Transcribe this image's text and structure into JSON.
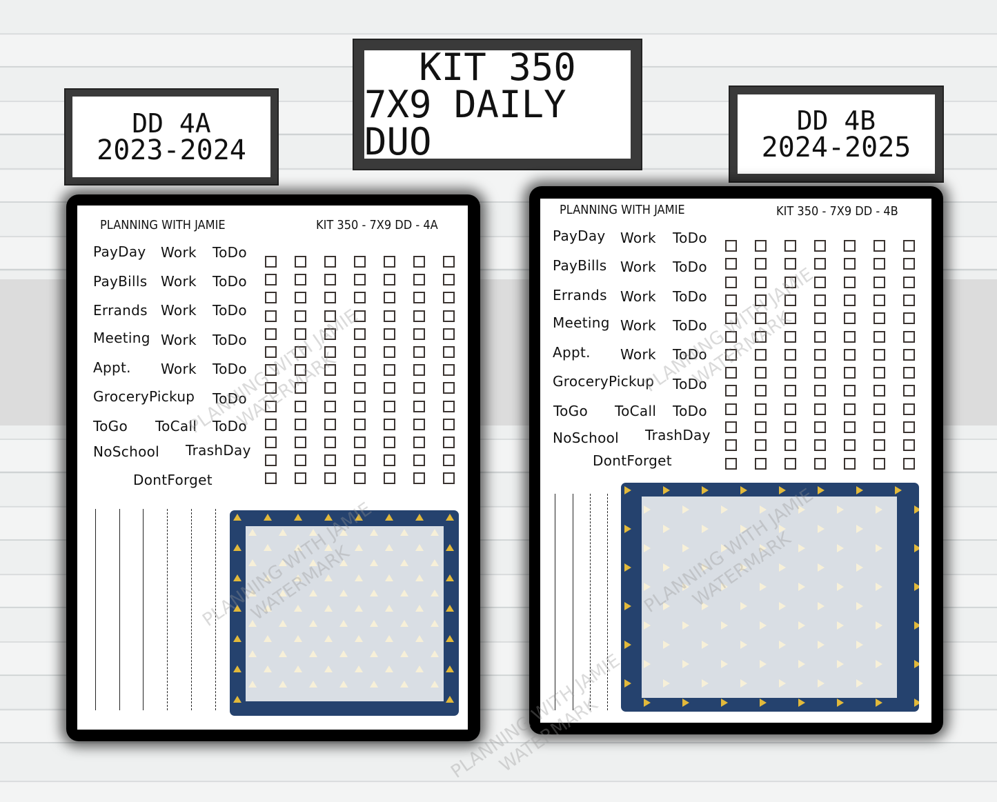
{
  "labels": {
    "left": {
      "line1": "DD 4A",
      "line2": "2023-2024"
    },
    "center": {
      "line1": "KIT 350",
      "line2": "7X9 DAILY DUO"
    },
    "right": {
      "line1": "DD 4B",
      "line2": "2024-2025"
    }
  },
  "sheets": [
    {
      "brand": "PLANNING WITH JAMIE",
      "code": "KIT 350 - 7X9 DD - 4A",
      "words": [
        "PayDay",
        "Work",
        "ToDo",
        "PayBills",
        "Work",
        "ToDo",
        "Errands",
        "Work",
        "ToDo",
        "Meeting",
        "Work",
        "ToDo",
        "Appt.",
        "Work",
        "ToDo",
        "GroceryPickup",
        "ToDo",
        "ToGo",
        "ToCall",
        "ToDo",
        "NoSchool",
        "TrashDay",
        "DontForget"
      ],
      "checkbox_columns": 7,
      "checkbox_rows": 13,
      "pattern": "navy border with gold triangles pointing up"
    },
    {
      "brand": "PLANNING WITH JAMIE",
      "code": "KIT 350 - 7X9 DD - 4B",
      "words": [
        "PayDay",
        "Work",
        "ToDo",
        "PayBills",
        "Work",
        "ToDo",
        "Errands",
        "Work",
        "ToDo",
        "Meeting",
        "Work",
        "ToDo",
        "Appt.",
        "Work",
        "ToDo",
        "GroceryPickup",
        "ToDo",
        "ToGo",
        "ToCall",
        "ToDo",
        "NoSchool",
        "TrashDay",
        "DontForget"
      ],
      "checkbox_columns": 7,
      "checkbox_rows": 13,
      "pattern": "navy border with gold triangles pointing right"
    }
  ],
  "watermark": {
    "line1": "PLANNING WITH JAMIE",
    "line2": "WATERMARK"
  },
  "colors": {
    "navy": "#25426e",
    "gold": "#e2b93b",
    "inner": "#d9dee4",
    "cream": "#f7f0d8"
  }
}
